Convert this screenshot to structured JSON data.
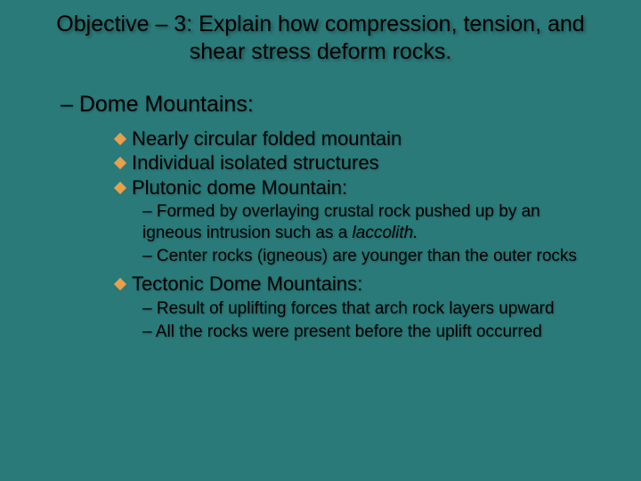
{
  "colors": {
    "background": "#2a7a7a",
    "text": "#000000",
    "bullet_diamond": "#e8a04a"
  },
  "typography": {
    "title_font": "Arial",
    "body_font": "Verdana",
    "title_fontsize": 25,
    "level1_fontsize": 25,
    "level2_fontsize": 22,
    "level3_fontsize": 19
  },
  "title": "Objective – 3: Explain how compression, tension, and shear stress deform rocks.",
  "level1": "– Dome Mountains:",
  "bullets": {
    "b1": "Nearly circular folded mountain",
    "b2": "Individual isolated structures",
    "b3": "Plutonic dome Mountain:",
    "b3_sub1_prefix": "– Formed by overlaying crustal rock pushed up by an igneous intrusion such as a ",
    "b3_sub1_italic": "laccolith.",
    "b3_sub2": "– Center rocks (igneous) are younger than the outer rocks",
    "b4": "Tectonic Dome Mountains:",
    "b4_sub1": "– Result of uplifting forces that arch rock layers upward",
    "b4_sub2": "– All the rocks were present before the uplift occurred"
  }
}
